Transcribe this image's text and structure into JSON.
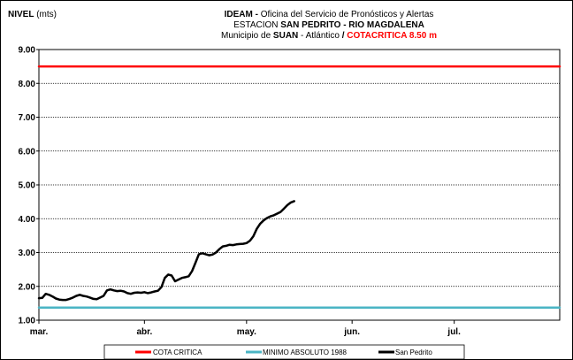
{
  "chart_data": {
    "type": "line",
    "title": {
      "line1_bold": "IDEAM -",
      "line1_rest": " Oficina del Servicio de Pronósticos y Alertas",
      "line2_prefix": "ESTACION ",
      "line2_bold": "SAN PEDRITO - RIO MAGDALENA",
      "line3_prefix": "Municipio de ",
      "line3_bold": "SUAN",
      "line3_mid": " - Atlántico ",
      "line3_slash": "/",
      "line3_red": " COTACRITICA 8.50  m"
    },
    "ylabel_bold": "NIVEL",
    "ylabel_unit": " (mts)",
    "ylim": [
      1.0,
      9.0
    ],
    "yticks": [
      "9.00",
      "8.00",
      "7.00",
      "6.00",
      "5.00",
      "4.00",
      "3.00",
      "2.00",
      "1.00"
    ],
    "xlim": [
      0,
      153
    ],
    "xticks": [
      {
        "label": "mar.",
        "value": 0
      },
      {
        "label": "abr.",
        "value": 31
      },
      {
        "label": "may.",
        "value": 61
      },
      {
        "label": "jun.",
        "value": 92
      },
      {
        "label": "jul.",
        "value": 122
      }
    ],
    "grid": true,
    "legend_position": "bottom",
    "series": [
      {
        "name": "COTA CRITICA",
        "color": "#ff0000",
        "x": [
          0,
          153
        ],
        "y": [
          8.5,
          8.5
        ]
      },
      {
        "name": "MINIMO ABSOLUTO 1988",
        "color": "#4ab5c4",
        "x": [
          0,
          153
        ],
        "y": [
          1.37,
          1.37
        ]
      },
      {
        "name": "San Pedrito",
        "color": "#000000",
        "x": [
          0,
          1,
          2,
          3,
          4,
          5,
          6,
          7,
          8,
          9,
          10,
          11,
          12,
          13,
          14,
          15,
          16,
          17,
          18,
          19,
          20,
          21,
          22,
          23,
          24,
          25,
          26,
          27,
          28,
          29,
          30,
          31,
          32,
          33,
          34,
          35,
          36,
          37,
          38,
          39,
          40,
          41,
          42,
          43,
          44,
          45,
          46,
          47,
          48,
          49,
          50,
          51,
          52,
          53,
          54,
          55,
          56,
          57,
          58,
          59,
          60,
          61,
          62,
          63,
          64,
          65,
          66,
          67,
          68,
          69,
          70,
          71,
          72,
          73,
          74,
          75
        ],
        "y": [
          1.65,
          1.66,
          1.78,
          1.75,
          1.7,
          1.64,
          1.61,
          1.6,
          1.6,
          1.63,
          1.67,
          1.72,
          1.75,
          1.72,
          1.7,
          1.67,
          1.63,
          1.62,
          1.67,
          1.72,
          1.88,
          1.91,
          1.88,
          1.86,
          1.87,
          1.85,
          1.8,
          1.78,
          1.81,
          1.82,
          1.81,
          1.83,
          1.8,
          1.82,
          1.85,
          1.87,
          1.98,
          2.25,
          2.35,
          2.32,
          2.15,
          2.2,
          2.25,
          2.27,
          2.3,
          2.45,
          2.7,
          2.95,
          2.98,
          2.95,
          2.92,
          2.94,
          3.0,
          3.1,
          3.18,
          3.2,
          3.23,
          3.22,
          3.24,
          3.25,
          3.26,
          3.28,
          3.35,
          3.48,
          3.7,
          3.85,
          3.95,
          4.02,
          4.07,
          4.1,
          4.15,
          4.2,
          4.3,
          4.4,
          4.48,
          4.52
        ]
      }
    ]
  }
}
